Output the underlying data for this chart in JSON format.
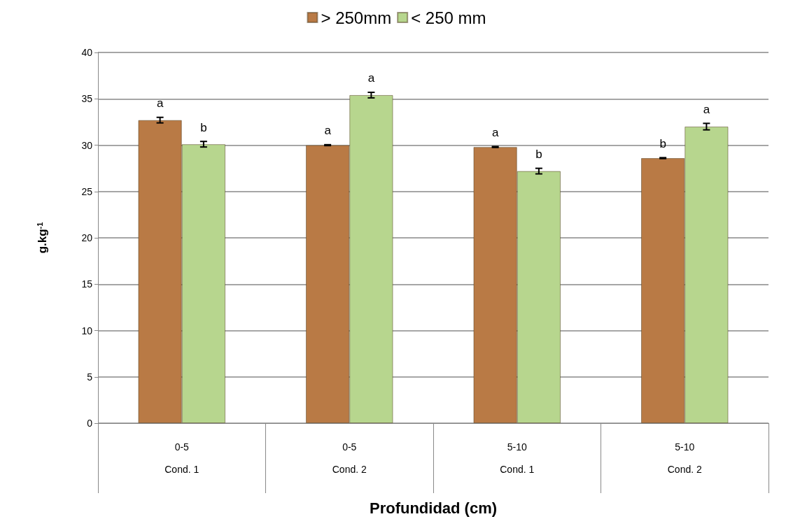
{
  "chart_data": {
    "type": "bar",
    "xlabel": "Profundidad (cm)",
    "ylabel": "g.kg$^{-1}$",
    "categories": [
      "0-5\nCond. 1",
      "0-5\nCond. 2",
      "5-10\nCond. 1",
      "5-10\nCond. 2"
    ],
    "series": [
      {
        "name": "> 250mm",
        "color": "#b97a45",
        "values": [
          32.7,
          30.0,
          29.8,
          28.6
        ],
        "errors": [
          0.3,
          0.05,
          0.05,
          0.05
        ]
      },
      {
        "name": "< 250 mm",
        "color": "#b7d68e",
        "values": [
          30.1,
          35.4,
          27.2,
          32.0
        ],
        "errors": [
          0.3,
          0.3,
          0.3,
          0.35
        ]
      }
    ],
    "annotations": [
      {
        "text": "a",
        "x": "0-5\nCond. 1",
        "y": 32.7
      },
      {
        "text": "b",
        "x": "0-5\nCond. 1",
        "y": 30.1
      },
      {
        "text": "a",
        "x": "0-5\nCond. 2",
        "y": 30.0
      },
      {
        "text": "a",
        "x": "0-5\nCond. 2",
        "y": 35.4
      },
      {
        "text": "a",
        "x": "5-10\nCond. 1",
        "y": 29.8
      },
      {
        "text": "b",
        "x": "5-10\nCond. 1",
        "y": 27.2
      },
      {
        "text": "b",
        "x": "5-10\nCond. 2",
        "y": 28.6
      },
      {
        "text": "a",
        "x": "5-10\nCond. 2",
        "y": 32.0
      }
    ],
    "ylim": [
      0,
      40
    ],
    "yticks": [
      0,
      5,
      10,
      15,
      20,
      25,
      30,
      35,
      40
    ],
    "grid": "y",
    "legend": "top"
  }
}
